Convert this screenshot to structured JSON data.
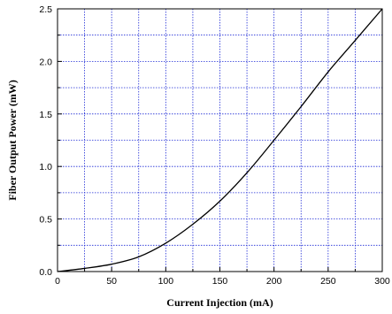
{
  "chart_data": {
    "type": "line",
    "title": "",
    "xlabel": "Current Injection (mA)",
    "ylabel": "Fiber Output Power (mW)",
    "xlim": [
      0,
      300
    ],
    "ylim": [
      0.0,
      2.5
    ],
    "x_ticks": [
      0,
      50,
      100,
      150,
      200,
      250,
      300
    ],
    "x_tick_labels": [
      "0",
      "50",
      "100",
      "150",
      "200",
      "250",
      "300"
    ],
    "x_minor_ticks": [
      25,
      75,
      125,
      175,
      225,
      275
    ],
    "y_ticks": [
      0.0,
      0.5,
      1.0,
      1.5,
      2.0,
      2.5
    ],
    "y_tick_labels": [
      "0.0",
      "0.5",
      "1.0",
      "1.5",
      "2.0",
      "2.5"
    ],
    "y_minor_ticks": [
      0.25,
      0.75,
      1.25,
      1.75,
      2.25
    ],
    "grid": true,
    "legend": "none",
    "colors": {
      "grid": "#1f2bd6",
      "line": "#000000",
      "axis": "#000000"
    },
    "series": [
      {
        "x": [
          0,
          25,
          50,
          75,
          100,
          125,
          150,
          175,
          200,
          225,
          250,
          275,
          300
        ],
        "y": [
          0.0,
          0.03,
          0.07,
          0.14,
          0.27,
          0.45,
          0.67,
          0.94,
          1.25,
          1.57,
          1.9,
          2.2,
          2.5
        ]
      }
    ]
  }
}
